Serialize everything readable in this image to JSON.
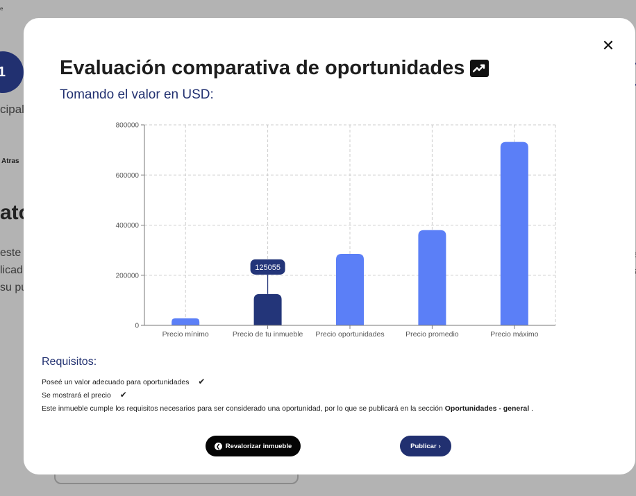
{
  "background": {
    "tiny_text": "e",
    "step_number": "1",
    "step_label": "cipale",
    "back_link": "Atras",
    "heading_fragment": "ato",
    "para_lines": [
      "este s",
      "licad",
      "su pu"
    ],
    "right_letters": [
      "e",
      "s"
    ]
  },
  "modal": {
    "title": "Evaluación comparativa de oportunidades",
    "title_icon": "trending-up-icon",
    "close_icon": "close-icon",
    "subtitle": "Tomando el valor en USD:"
  },
  "chart_data": {
    "type": "bar",
    "categories": [
      "Precio mínimo",
      "Precio de tu inmueble",
      "Precio oportunidades",
      "Precio promedio",
      "Precio máximo"
    ],
    "values": [
      28000,
      125055,
      285000,
      380000,
      732000
    ],
    "highlight_index": 1,
    "tooltip": "125055",
    "ylim": [
      0,
      800000
    ],
    "yticks": [
      0,
      200000,
      400000,
      600000,
      800000
    ],
    "ytick_labels": [
      "0",
      "200000",
      "400000",
      "600000",
      "800000"
    ],
    "grid": true,
    "colors": {
      "bar": "#5b7ff7",
      "highlight": "#233579",
      "grid": "#cccccc"
    }
  },
  "requirements": {
    "title": "Requisitos:",
    "items": [
      {
        "label": "Poseé un valor adecuado para oportunidades",
        "check": "✔"
      },
      {
        "label": "Se mostrará el precio",
        "check": "✔"
      }
    ],
    "note_prefix": "Este inmueble cumple los requisitos necesarios para ser considerado una oportunidad, por lo que se publicará en la sección ",
    "note_section": "Oportunidades - general",
    "note_suffix": " ."
  },
  "buttons": {
    "revalue_label": "Revalorizar inmueble",
    "revalue_icon": "circle-arrow-left-icon",
    "publish_label": "Publicar",
    "publish_icon": "chevron-right-icon"
  }
}
